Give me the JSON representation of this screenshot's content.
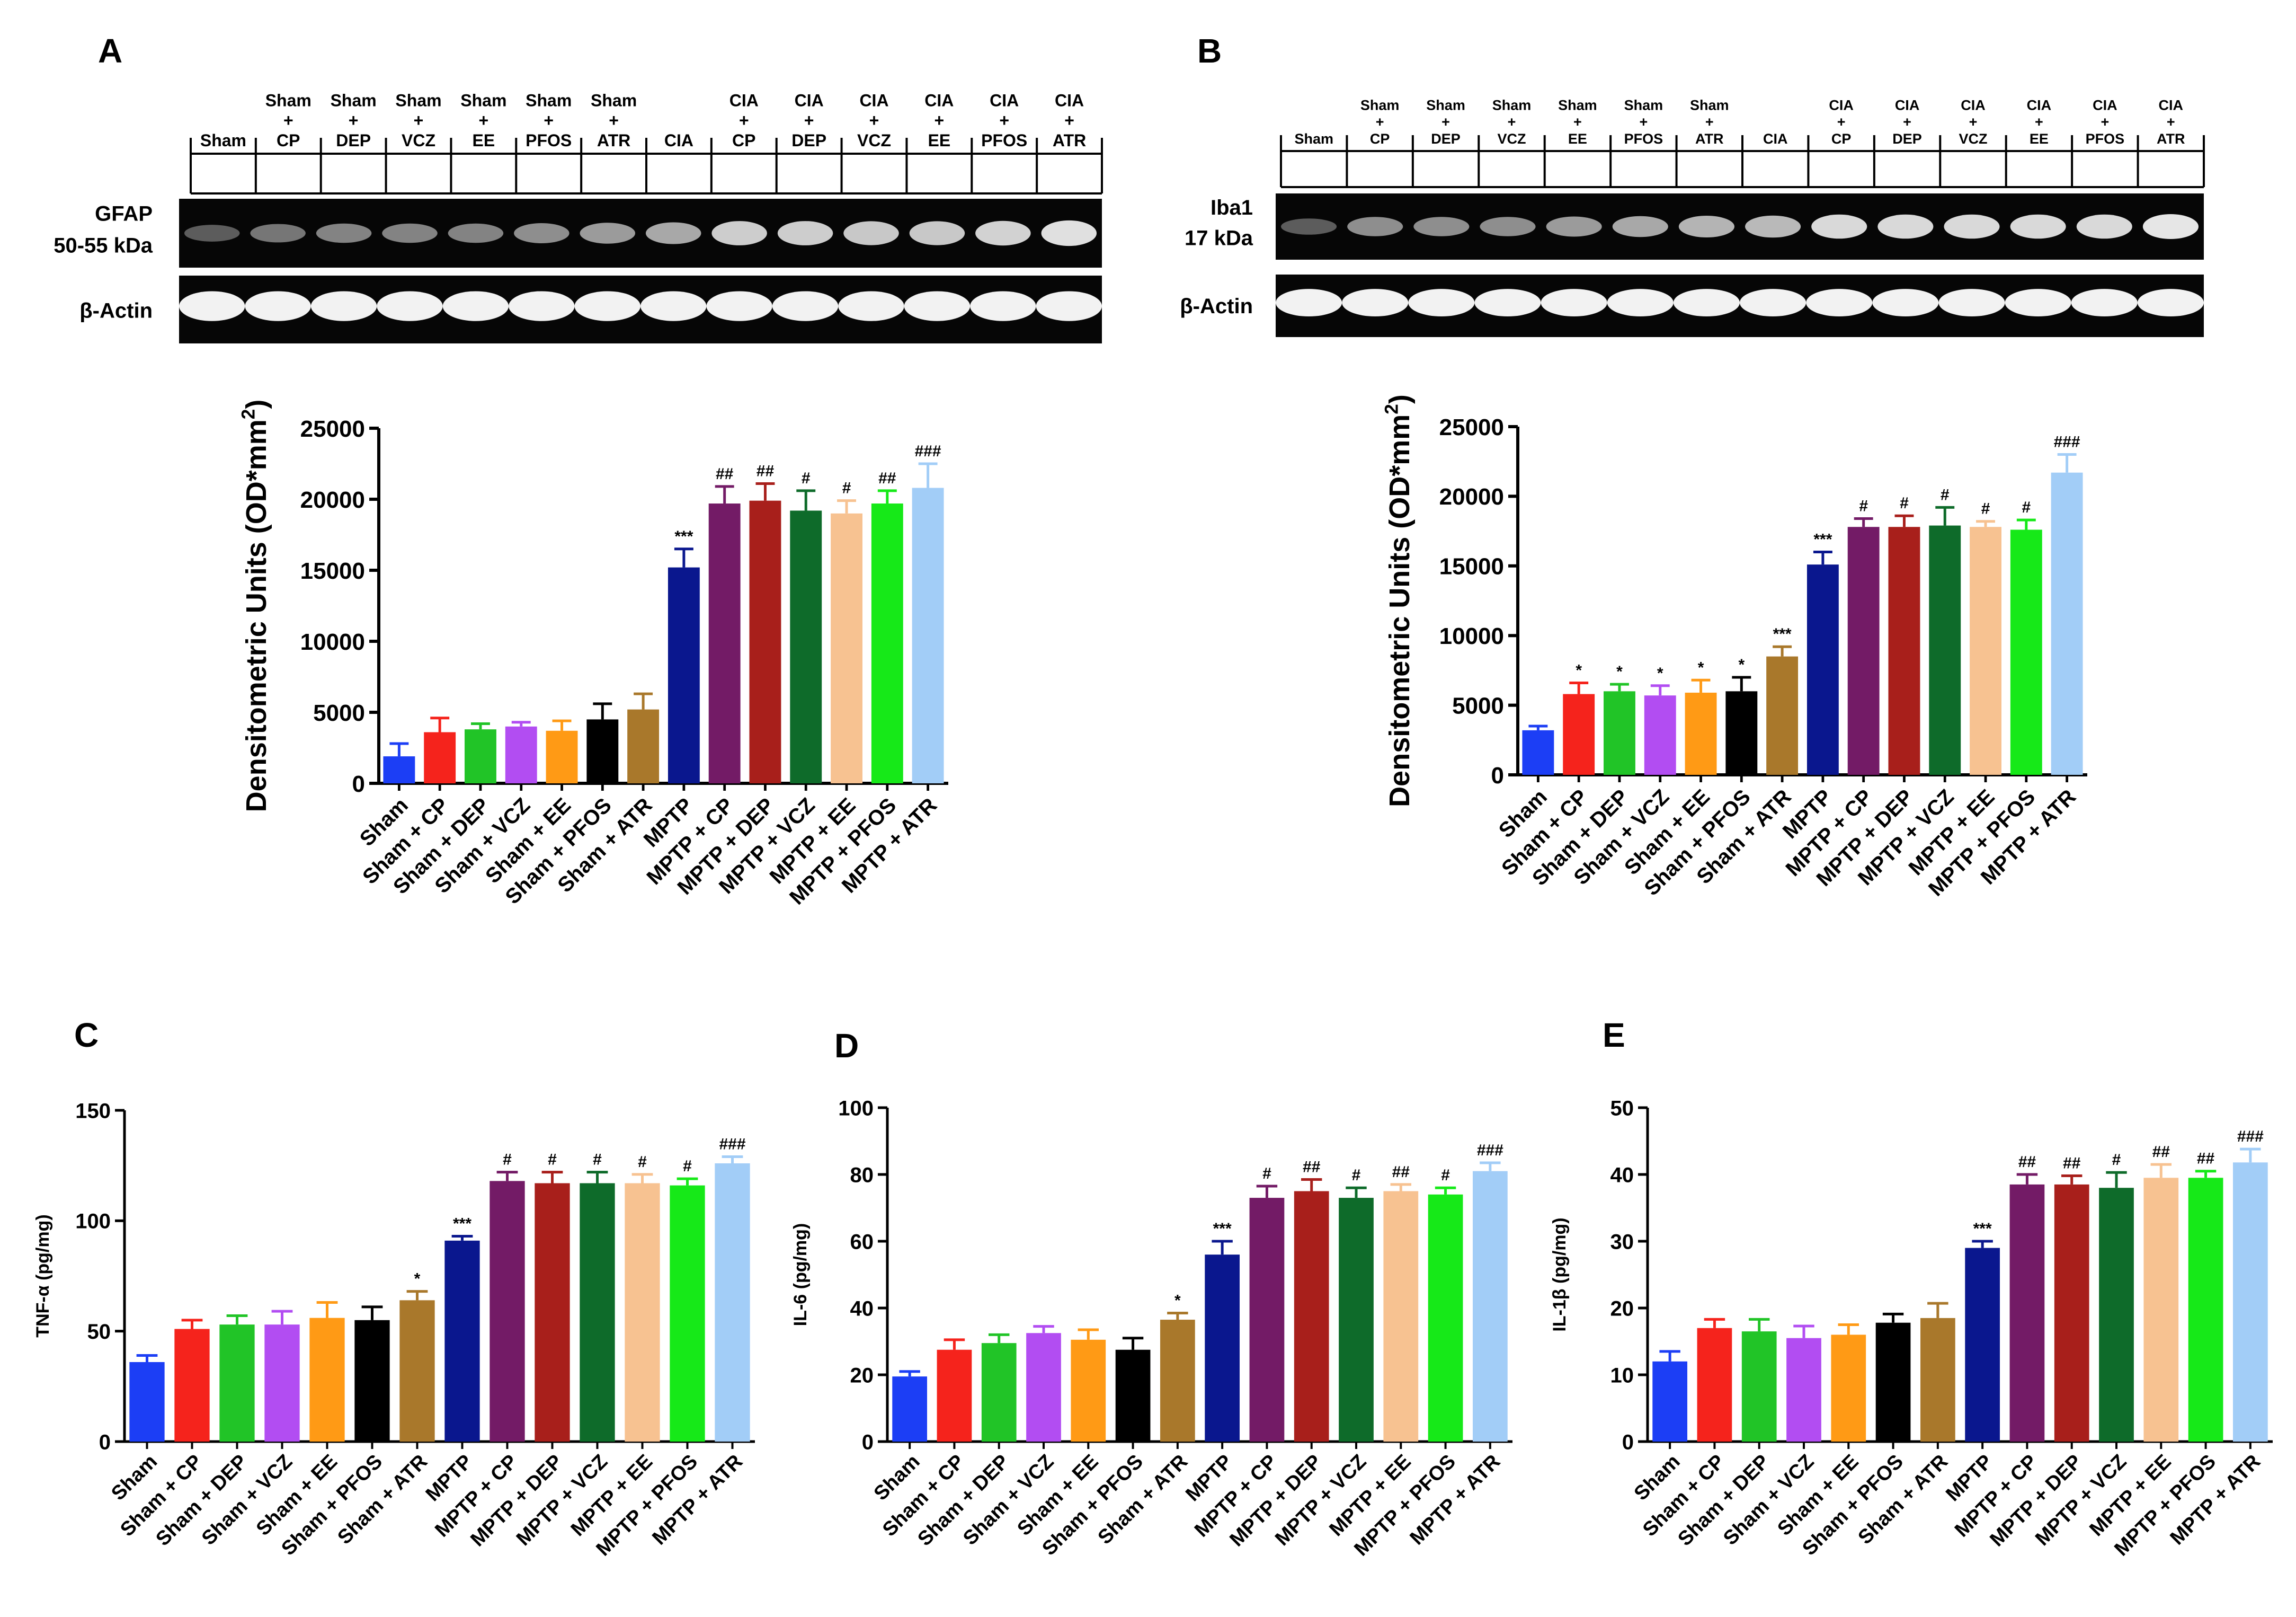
{
  "colors": [
    "#1c3ef5",
    "#f5231c",
    "#21c427",
    "#b24df2",
    "#ff9a15",
    "#000000",
    "#a9782b",
    "#0a178e",
    "#731b66",
    "#a81f1b",
    "#0e6b2a",
    "#f7c291",
    "#16e918",
    "#a2cdf7"
  ],
  "panels": {
    "A": {
      "label": "A",
      "lanes": [
        [
          "Sham"
        ],
        [
          "Sham",
          "+",
          "CP"
        ],
        [
          "Sham",
          "+",
          "DEP"
        ],
        [
          "Sham",
          "+",
          "VCZ"
        ],
        [
          "Sham",
          "+",
          "EE"
        ],
        [
          "Sham",
          "+",
          "PFOS"
        ],
        [
          "Sham",
          "+",
          "ATR"
        ],
        [
          "CIA"
        ],
        [
          "CIA",
          "+",
          "CP"
        ],
        [
          "CIA",
          "+",
          "DEP"
        ],
        [
          "CIA",
          "+",
          "VCZ"
        ],
        [
          "CIA",
          "+",
          "EE"
        ],
        [
          "CIA",
          "+",
          "PFOS"
        ],
        [
          "CIA",
          "+",
          "ATR"
        ]
      ],
      "blot_label_1": "GFAP",
      "blot_label_2": "50-55 kDa",
      "actin_label": "β-Actin",
      "band_intensity": [
        0.35,
        0.45,
        0.5,
        0.5,
        0.5,
        0.55,
        0.6,
        0.65,
        0.8,
        0.8,
        0.78,
        0.78,
        0.82,
        0.88
      ]
    },
    "B": {
      "label": "B",
      "lanes": [
        [
          "Sham"
        ],
        [
          "Sham",
          "+",
          "CP"
        ],
        [
          "Sham",
          "+",
          "DEP"
        ],
        [
          "Sham",
          "+",
          "VCZ"
        ],
        [
          "Sham",
          "+",
          "EE"
        ],
        [
          "Sham",
          "+",
          "PFOS"
        ],
        [
          "Sham",
          "+",
          "ATR"
        ],
        [
          "CIA"
        ],
        [
          "CIA",
          "+",
          "CP"
        ],
        [
          "CIA",
          "+",
          "DEP"
        ],
        [
          "CIA",
          "+",
          "VCZ"
        ],
        [
          "CIA",
          "+",
          "EE"
        ],
        [
          "CIA",
          "+",
          "PFOS"
        ],
        [
          "CIA",
          "+",
          "ATR"
        ]
      ],
      "blot_label_1": "Iba1",
      "blot_label_2": "17 kDa",
      "actin_label": "β-Actin",
      "band_intensity": [
        0.35,
        0.55,
        0.55,
        0.55,
        0.6,
        0.65,
        0.7,
        0.72,
        0.85,
        0.85,
        0.85,
        0.85,
        0.85,
        0.9
      ]
    },
    "C": {
      "label": "C"
    },
    "D": {
      "label": "D"
    },
    "E": {
      "label": "E"
    }
  },
  "chart_data": [
    {
      "id": "A",
      "type": "bar",
      "ylabel": "Densitometric Units (OD*mm",
      "ylabel_sup": "2",
      "ylabel_tail": ")",
      "ylim": [
        0,
        25000
      ],
      "yticks": [
        "0",
        "5000",
        "10000",
        "15000",
        "20000",
        "25000"
      ],
      "categories": [
        "Sham",
        "Sham + CP",
        "Sham + DEP",
        "Sham + VCZ",
        "Sham + EE",
        "Sham + PFOS",
        "Sham + ATR",
        "MPTP",
        "MPTP + CP",
        "MPTP + DEP",
        "MPTP + VCZ",
        "MPTP + EE",
        "MPTP + PFOS",
        "MPTP + ATR"
      ],
      "values": [
        1900,
        3600,
        3800,
        4000,
        3700,
        4500,
        5200,
        15200,
        19700,
        19900,
        19200,
        19000,
        19700,
        20800
      ],
      "errors": [
        900,
        1000,
        400,
        300,
        700,
        1100,
        1100,
        1300,
        1200,
        1200,
        1400,
        900,
        900,
        1700
      ],
      "significance": [
        "",
        "",
        "",
        "",
        "",
        "",
        "",
        "***",
        "##",
        "##",
        "#",
        "#",
        "##",
        "###"
      ]
    },
    {
      "id": "B",
      "type": "bar",
      "ylabel": "Densitometric Units (OD*mm",
      "ylabel_sup": "2",
      "ylabel_tail": ")",
      "ylim": [
        0,
        25000
      ],
      "yticks": [
        "0",
        "5000",
        "10000",
        "15000",
        "20000",
        "25000"
      ],
      "categories": [
        "Sham",
        "Sham + CP",
        "Sham + DEP",
        "Sham + VCZ",
        "Sham + EE",
        "Sham + PFOS",
        "Sham + ATR",
        "MPTP",
        "MPTP + CP",
        "MPTP + DEP",
        "MPTP + VCZ",
        "MPTP + EE",
        "MPTP + PFOS",
        "MPTP + ATR"
      ],
      "values": [
        3200,
        5800,
        6000,
        5700,
        5900,
        6000,
        8500,
        15100,
        17800,
        17800,
        17900,
        17800,
        17600,
        21700
      ],
      "errors": [
        300,
        800,
        500,
        700,
        900,
        1000,
        700,
        900,
        600,
        800,
        1300,
        400,
        700,
        1300
      ],
      "significance": [
        "",
        "*",
        "*",
        "*",
        "*",
        "*",
        "***",
        "***",
        "#",
        "#",
        "#",
        "#",
        "#",
        "###"
      ]
    },
    {
      "id": "C",
      "type": "bar",
      "ylabel": "TNF-α (pg/mg)",
      "ylim": [
        0,
        150
      ],
      "yticks": [
        "0",
        "50",
        "100",
        "150"
      ],
      "categories": [
        "Sham",
        "Sham + CP",
        "Sham + DEP",
        "Sham + VCZ",
        "Sham + EE",
        "Sham + PFOS",
        "Sham + ATR",
        "MPTP",
        "MPTP + CP",
        "MPTP + DEP",
        "MPTP + VCZ",
        "MPTP + EE",
        "MPTP + PFOS",
        "MPTP + ATR"
      ],
      "values": [
        36,
        51,
        53,
        53,
        56,
        55,
        64,
        91,
        118,
        117,
        117,
        117,
        116,
        126
      ],
      "errors": [
        3,
        4,
        4,
        6,
        7,
        6,
        4,
        2,
        4,
        5,
        5,
        4,
        3,
        3
      ],
      "significance": [
        "",
        "",
        "",
        "",
        "",
        "",
        "*",
        "***",
        "#",
        "#",
        "#",
        "#",
        "#",
        "###"
      ]
    },
    {
      "id": "D",
      "type": "bar",
      "ylabel": "IL-6 (pg/mg)",
      "ylim": [
        0,
        100
      ],
      "yticks": [
        "0",
        "20",
        "40",
        "60",
        "80",
        "100"
      ],
      "categories": [
        "Sham",
        "Sham + CP",
        "Sham + DEP",
        "Sham + VCZ",
        "Sham + EE",
        "Sham + PFOS",
        "Sham + ATR",
        "MPTP",
        "MPTP + CP",
        "MPTP + DEP",
        "MPTP + VCZ",
        "MPTP + EE",
        "MPTP + PFOS",
        "MPTP + ATR"
      ],
      "values": [
        19.5,
        27.5,
        29.5,
        32.5,
        30.5,
        27.5,
        36.5,
        56,
        73,
        75,
        73,
        75,
        74,
        81
      ],
      "errors": [
        1.5,
        3,
        2.5,
        2,
        3,
        3.5,
        2,
        4,
        3.5,
        3.5,
        3,
        2,
        2,
        2.5
      ],
      "significance": [
        "",
        "",
        "",
        "",
        "",
        "",
        "*",
        "***",
        "#",
        "##",
        "#",
        "##",
        "#",
        "###"
      ]
    },
    {
      "id": "E",
      "type": "bar",
      "ylabel": "IL-1β (pg/mg)",
      "ylim": [
        0,
        50
      ],
      "yticks": [
        "0",
        "10",
        "20",
        "30",
        "40",
        "50"
      ],
      "categories": [
        "Sham",
        "Sham + CP",
        "Sham + DEP",
        "Sham + VCZ",
        "Sham + EE",
        "Sham + PFOS",
        "Sham + ATR",
        "MPTP",
        "MPTP + CP",
        "MPTP + DEP",
        "MPTP + VCZ",
        "MPTP + EE",
        "MPTP + PFOS",
        "MPTP + ATR"
      ],
      "values": [
        12,
        17,
        16.5,
        15.5,
        16,
        17.8,
        18.5,
        29,
        38.5,
        38.5,
        38,
        39.5,
        39.5,
        41.8
      ],
      "errors": [
        1.5,
        1.3,
        1.8,
        1.8,
        1.5,
        1.3,
        2.2,
        1,
        1.5,
        1.3,
        2.3,
        2,
        1,
        2
      ],
      "significance": [
        "",
        "",
        "",
        "",
        "",
        "",
        "",
        "***",
        "##",
        "##",
        "#",
        "##",
        "##",
        "###"
      ]
    }
  ]
}
